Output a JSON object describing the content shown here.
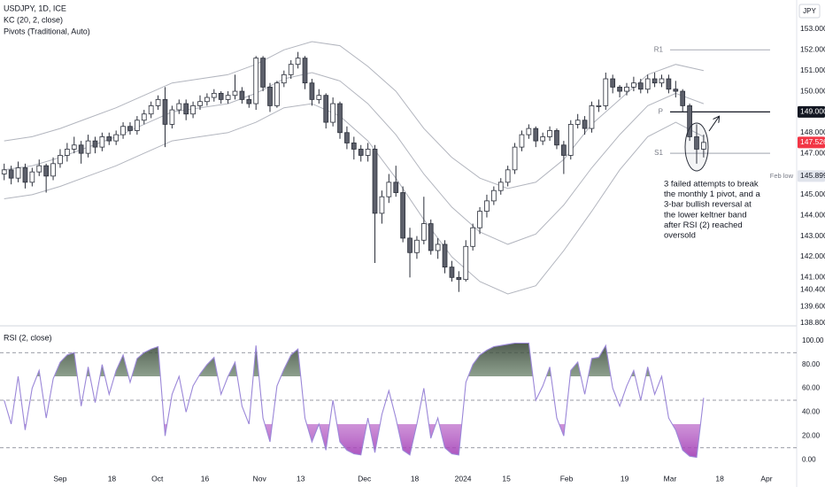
{
  "chart_data": [
    {
      "type": "candlestick",
      "title": "USDJPY, 1D, ICE",
      "indicator_labels": [
        "KC (20, 2, close)",
        "Pivots (Traditional, Auto)"
      ],
      "currency": "JPY",
      "up_color": "#ffffff",
      "down_color": "#5d606b",
      "wick_color": "#2a2e39",
      "xlim": [
        -0.6,
        113.3
      ],
      "xticks": [
        {
          "value": 8,
          "label": "Sep"
        },
        {
          "value": 15.4,
          "label": "18"
        },
        {
          "value": 21.9,
          "label": "Oct"
        },
        {
          "value": 28.7,
          "label": "16"
        },
        {
          "value": 36.5,
          "label": "Nov"
        },
        {
          "value": 42.4,
          "label": "13"
        },
        {
          "value": 51.5,
          "label": "Dec"
        },
        {
          "value": 58.7,
          "label": "18"
        },
        {
          "value": 65.6,
          "label": "2024"
        },
        {
          "value": 71.8,
          "label": "15"
        },
        {
          "value": 80.4,
          "label": "Feb"
        },
        {
          "value": 88.7,
          "label": "19"
        },
        {
          "value": 95.2,
          "label": "Mar"
        },
        {
          "value": 102.3,
          "label": "18"
        },
        {
          "value": 109,
          "label": "Apr"
        }
      ],
      "ylim": [
        138.66,
        154.41
      ],
      "yticks": [
        {
          "value": 153,
          "label": "153.000"
        },
        {
          "value": 152,
          "label": "152.000"
        },
        {
          "value": 151,
          "label": "151.000"
        },
        {
          "value": 150,
          "label": "150.000"
        },
        {
          "value": 148,
          "label": "148.000"
        },
        {
          "value": 147,
          "label": "147.000"
        },
        {
          "value": 145,
          "label": "145.000"
        },
        {
          "value": 144,
          "label": "144.000"
        },
        {
          "value": 143,
          "label": "143.000"
        },
        {
          "value": 142,
          "label": "142.000"
        },
        {
          "value": 141,
          "label": "141.000"
        },
        {
          "value": 140.4,
          "label": "140.400"
        },
        {
          "value": 139.6,
          "label": "139.600"
        },
        {
          "value": 138.8,
          "label": "138.800"
        }
      ],
      "ohlc": [
        [
          146.0,
          146.5,
          145.7,
          146.2
        ],
        [
          146.2,
          146.4,
          145.5,
          145.8
        ],
        [
          145.8,
          146.6,
          145.6,
          146.3
        ],
        [
          146.3,
          146.5,
          145.3,
          145.6
        ],
        [
          145.6,
          146.3,
          145.4,
          146.1
        ],
        [
          146.1,
          146.7,
          145.9,
          146.4
        ],
        [
          146.4,
          146.5,
          145.1,
          145.9
        ],
        [
          145.9,
          146.8,
          145.7,
          146.5
        ],
        [
          146.5,
          147.2,
          146.3,
          146.9
        ],
        [
          146.9,
          147.5,
          146.6,
          147.2
        ],
        [
          147.2,
          147.8,
          147.0,
          147.4
        ],
        [
          147.4,
          147.6,
          146.5,
          147.0
        ],
        [
          147.0,
          147.9,
          146.8,
          147.6
        ],
        [
          147.6,
          147.8,
          147.0,
          147.3
        ],
        [
          147.3,
          148.0,
          147.1,
          147.8
        ],
        [
          147.8,
          148.0,
          147.4,
          147.6
        ],
        [
          147.6,
          148.1,
          147.4,
          147.9
        ],
        [
          147.9,
          148.5,
          147.7,
          148.3
        ],
        [
          148.3,
          148.5,
          147.9,
          148.1
        ],
        [
          148.1,
          148.8,
          147.9,
          148.6
        ],
        [
          148.6,
          149.1,
          148.4,
          148.9
        ],
        [
          148.9,
          149.5,
          148.7,
          149.3
        ],
        [
          149.3,
          149.8,
          149.1,
          149.6
        ],
        [
          149.6,
          150.2,
          147.3,
          148.4
        ],
        [
          148.4,
          149.3,
          148.2,
          149.1
        ],
        [
          149.1,
          149.6,
          148.9,
          149.4
        ],
        [
          149.4,
          149.6,
          148.6,
          148.9
        ],
        [
          148.9,
          149.5,
          148.7,
          149.3
        ],
        [
          149.3,
          149.8,
          149.1,
          149.5
        ],
        [
          149.5,
          149.9,
          149.3,
          149.7
        ],
        [
          149.7,
          150.1,
          149.5,
          149.9
        ],
        [
          149.9,
          150.0,
          149.4,
          149.6
        ],
        [
          149.6,
          150.0,
          149.4,
          149.8
        ],
        [
          149.8,
          150.8,
          149.6,
          150.0
        ],
        [
          150.0,
          150.2,
          149.4,
          149.6
        ],
        [
          149.6,
          149.8,
          149.2,
          149.4
        ],
        [
          149.4,
          151.7,
          149.1,
          151.6
        ],
        [
          151.6,
          151.7,
          150.0,
          150.2
        ],
        [
          150.2,
          150.4,
          149.0,
          149.3
        ],
        [
          149.3,
          150.5,
          149.2,
          150.4
        ],
        [
          150.4,
          151.0,
          150.2,
          150.8
        ],
        [
          150.8,
          151.5,
          150.6,
          151.3
        ],
        [
          151.3,
          151.9,
          151.1,
          151.6
        ],
        [
          151.6,
          151.7,
          150.1,
          150.4
        ],
        [
          150.4,
          150.6,
          149.3,
          149.6
        ],
        [
          149.6,
          150.1,
          149.4,
          149.8
        ],
        [
          149.8,
          149.9,
          148.2,
          148.5
        ],
        [
          148.5,
          149.7,
          148.3,
          149.4
        ],
        [
          149.4,
          149.5,
          147.7,
          148.0
        ],
        [
          148.0,
          148.3,
          147.2,
          147.5
        ],
        [
          147.5,
          147.8,
          146.7,
          147.2
        ],
        [
          147.2,
          147.4,
          146.6,
          146.9
        ],
        [
          146.9,
          147.5,
          146.6,
          147.2
        ],
        [
          147.2,
          147.4,
          141.7,
          144.1
        ],
        [
          144.1,
          145.2,
          143.6,
          144.9
        ],
        [
          144.9,
          146.0,
          144.6,
          145.6
        ],
        [
          145.6,
          146.4,
          144.9,
          145.1
        ],
        [
          145.1,
          145.4,
          142.7,
          142.9
        ],
        [
          142.9,
          143.4,
          141.0,
          142.2
        ],
        [
          142.2,
          143.0,
          141.9,
          142.8
        ],
        [
          142.8,
          144.9,
          142.6,
          143.6
        ],
        [
          143.6,
          143.8,
          142.1,
          142.3
        ],
        [
          142.3,
          142.9,
          141.9,
          142.6
        ],
        [
          142.6,
          142.8,
          141.2,
          141.5
        ],
        [
          141.5,
          141.8,
          140.8,
          141.0
        ],
        [
          141.0,
          141.3,
          140.3,
          140.9
        ],
        [
          140.9,
          142.8,
          140.8,
          142.5
        ],
        [
          142.5,
          143.6,
          142.3,
          143.4
        ],
        [
          143.4,
          144.4,
          143.1,
          144.2
        ],
        [
          144.2,
          145.0,
          143.9,
          144.7
        ],
        [
          144.7,
          145.4,
          144.5,
          145.2
        ],
        [
          145.2,
          145.8,
          145.0,
          145.6
        ],
        [
          145.6,
          146.4,
          145.4,
          146.2
        ],
        [
          146.2,
          147.5,
          146.0,
          147.3
        ],
        [
          147.3,
          148.1,
          147.1,
          147.9
        ],
        [
          147.9,
          148.4,
          147.7,
          148.2
        ],
        [
          148.2,
          148.3,
          147.3,
          147.6
        ],
        [
          147.6,
          148.0,
          147.4,
          147.8
        ],
        [
          147.8,
          148.3,
          147.6,
          148.1
        ],
        [
          148.1,
          148.2,
          147.2,
          147.4
        ],
        [
          147.4,
          147.6,
          146.0,
          146.9
        ],
        [
          146.9,
          148.6,
          146.7,
          148.4
        ],
        [
          148.4,
          148.9,
          148.2,
          148.6
        ],
        [
          148.6,
          148.8,
          147.9,
          148.2
        ],
        [
          148.2,
          149.5,
          148.0,
          149.3
        ],
        [
          149.3,
          149.6,
          149.0,
          149.3
        ],
        [
          149.3,
          150.9,
          149.1,
          150.6
        ],
        [
          150.6,
          150.8,
          149.9,
          150.2
        ],
        [
          150.2,
          150.3,
          149.7,
          150.0
        ],
        [
          150.0,
          150.4,
          149.8,
          150.2
        ],
        [
          150.2,
          150.7,
          150.0,
          150.4
        ],
        [
          150.4,
          150.6,
          149.9,
          150.1
        ],
        [
          150.1,
          150.8,
          149.9,
          150.6
        ],
        [
          150.6,
          150.9,
          150.2,
          150.4
        ],
        [
          150.4,
          150.8,
          150.2,
          150.6
        ],
        [
          150.6,
          150.8,
          149.9,
          150.1
        ],
        [
          150.1,
          150.5,
          149.7,
          150.0
        ],
        [
          150.0,
          150.1,
          149.0,
          149.3
        ],
        [
          149.3,
          149.4,
          147.6,
          147.8
        ],
        [
          147.8,
          148.4,
          146.5,
          147.2
        ],
        [
          147.2,
          147.9,
          146.8,
          147.526
        ]
      ],
      "keltner": {
        "color": "#b2b5be",
        "x": [
          0,
          4,
          8,
          12,
          16,
          20,
          24,
          28,
          32,
          36,
          40,
          44,
          48,
          52,
          56,
          60,
          64,
          68,
          72,
          76,
          80,
          84,
          88,
          92,
          96,
          100
        ],
        "upper": [
          147.6,
          147.8,
          148.2,
          148.7,
          149.2,
          149.8,
          150.4,
          150.6,
          150.8,
          151.3,
          152.0,
          152.4,
          152.2,
          151.2,
          150.0,
          148.2,
          146.8,
          145.8,
          145.3,
          145.6,
          146.7,
          148.4,
          149.6,
          150.8,
          151.3,
          151.0
        ],
        "middle": [
          146.2,
          146.4,
          146.8,
          147.3,
          147.8,
          148.4,
          149.0,
          149.2,
          149.4,
          149.9,
          150.6,
          150.9,
          150.5,
          149.4,
          147.9,
          146.0,
          144.4,
          143.2,
          142.6,
          143.1,
          144.5,
          146.3,
          147.9,
          149.3,
          149.9,
          149.4
        ],
        "lower": [
          144.8,
          145.0,
          145.4,
          145.9,
          146.4,
          147.0,
          147.6,
          147.8,
          148.0,
          148.5,
          149.2,
          149.4,
          148.8,
          147.6,
          145.8,
          143.8,
          142.0,
          140.8,
          140.2,
          140.6,
          142.3,
          144.2,
          146.2,
          147.8,
          148.5,
          147.8
        ]
      },
      "pivot_x": [
        95.2,
        109.5
      ],
      "pivots": [
        {
          "name": "R1",
          "value": 152.0,
          "color": "#b2b5be"
        },
        {
          "name": "P",
          "value": 149.0,
          "color": "#131722"
        },
        {
          "name": "S1",
          "value": 147.0,
          "color": "#b2b5be"
        }
      ],
      "price_labels": [
        {
          "value": 149,
          "label": "149.000",
          "color": "#131722",
          "text_color": "#ffffff"
        },
        {
          "value": 147.526,
          "color": "#f23645",
          "text_color": "#ffffff"
        },
        {
          "value": 145.899,
          "name": "Feb low",
          "color": "#e0e3eb",
          "text_color": "#131722"
        }
      ],
      "annotation": [
        "3 failed attempts to break",
        "the monthly 1 pivot, and a",
        "3-bar bullish reversal at",
        "the lower  keltner band",
        "after RSI (2) reached",
        "oversold"
      ]
    },
    {
      "type": "line",
      "title": "RSI (2, close)",
      "color": "#9b87d8",
      "ylim": [
        -14,
        111
      ],
      "yticks": [
        {
          "value": 100,
          "label": "100.00"
        },
        {
          "value": 80,
          "label": "80.00"
        },
        {
          "value": 60,
          "label": "60.00"
        },
        {
          "value": 40,
          "label": "40.00"
        },
        {
          "value": 20,
          "label": "20.00"
        },
        {
          "value": 0,
          "label": "0.00"
        }
      ],
      "levels": [
        90,
        50,
        10
      ],
      "values": [
        50,
        30,
        70,
        25,
        60,
        75,
        35,
        68,
        82,
        88,
        90,
        45,
        78,
        48,
        80,
        55,
        75,
        88,
        65,
        85,
        90,
        93,
        95,
        20,
        55,
        70,
        40,
        62,
        72,
        80,
        86,
        55,
        70,
        82,
        45,
        30,
        96,
        35,
        15,
        62,
        76,
        88,
        93,
        35,
        15,
        30,
        8,
        50,
        15,
        8,
        5,
        4,
        35,
        6,
        38,
        58,
        35,
        8,
        4,
        30,
        60,
        18,
        35,
        10,
        5,
        4,
        65,
        80,
        88,
        92,
        95,
        96,
        97,
        98,
        98,
        98,
        50,
        62,
        78,
        35,
        20,
        75,
        82,
        55,
        85,
        86,
        96,
        60,
        45,
        62,
        75,
        50,
        78,
        55,
        70,
        35,
        25,
        8,
        3,
        2,
        52
      ]
    }
  ]
}
